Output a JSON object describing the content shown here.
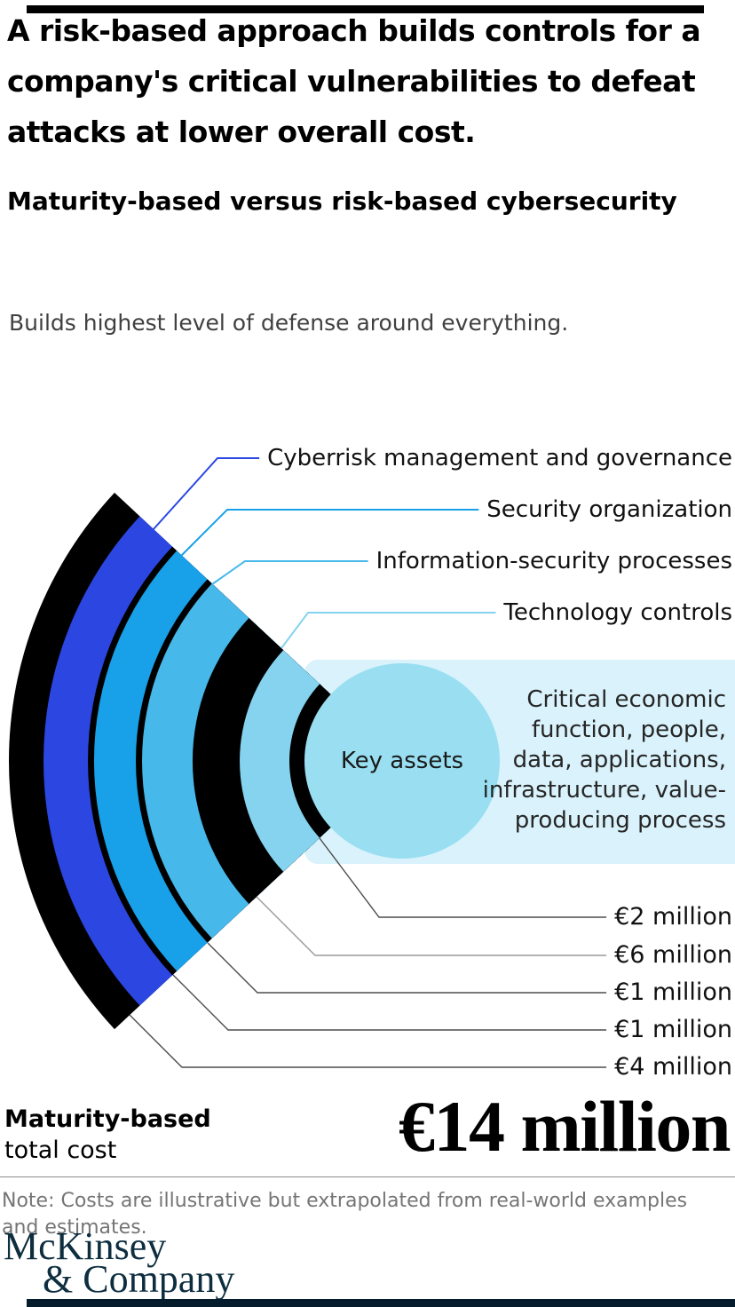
{
  "header": {
    "title_lines": [
      "A risk-based approach builds controls for a",
      "company's critical vulnerabilities to defeat",
      "attacks at lower overall cost."
    ],
    "subtitle": "Maturity-based versus risk-based cybersecurity"
  },
  "chart_data": {
    "type": "table",
    "title": "Maturity-based versus risk-based cybersecurity",
    "subtitle": "Builds highest level of defense around everything.",
    "defense_layers": [
      {
        "label": "Cyberrisk management and governance",
        "color": "#2B46E1"
      },
      {
        "label": "Security organization",
        "color": "#18A0E8"
      },
      {
        "label": "Information-security processes",
        "color": "#47B8EA"
      },
      {
        "label": "Technology controls",
        "color": "#85D3EE"
      }
    ],
    "center": {
      "label": "Key assets",
      "description_lines": [
        "Critical economic",
        "function, people,",
        "data, applications,",
        "infrastructure, value-",
        "producing process"
      ]
    },
    "costs": [
      {
        "display": "€2 million",
        "value_eur_million": 2
      },
      {
        "display": "€6 million",
        "value_eur_million": 6
      },
      {
        "display": "€1 million",
        "value_eur_million": 1
      },
      {
        "display": "€1 million",
        "value_eur_million": 1
      },
      {
        "display": "€4 million",
        "value_eur_million": 4
      }
    ],
    "total": {
      "label_line1": "Maturity-based",
      "label_line2": "total cost",
      "display": "€14 million",
      "value_eur_million": 14
    }
  },
  "note": "Note: Costs are illustrative but extrapolated from real-world examples and estimates.",
  "brand": {
    "line1": "McKinsey",
    "line2": "& Company"
  },
  "colors": {
    "black": "#000000",
    "royal_blue": "#2B46E1",
    "bright_blue": "#18A0E8",
    "medium_blue": "#47B8EA",
    "light_blue": "#85D3EE",
    "key_assets_fill": "#99DFF1",
    "panel_fill": "#D9F2FB",
    "leader_dark": "#4D4D4D",
    "leader_light": "#9A9A9A",
    "footer_bar": "#051C2C",
    "top_bar": "#000000",
    "note_gray": "#757575",
    "brand_navy": "#0E2E40"
  }
}
